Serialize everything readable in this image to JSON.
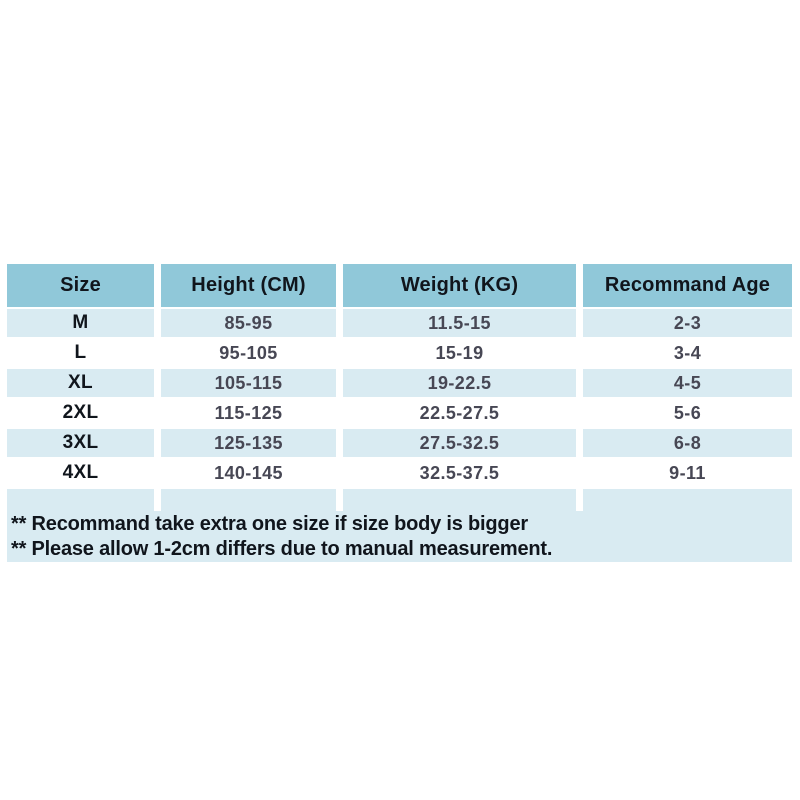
{
  "size_chart": {
    "headers": [
      "Size",
      "Height (CM)",
      "Weight (KG)",
      "Recommand Age"
    ],
    "rows": [
      [
        "M",
        "85-95",
        "11.5-15",
        "2-3"
      ],
      [
        "L",
        "95-105",
        "15-19",
        "3-4"
      ],
      [
        "XL",
        "105-115",
        "19-22.5",
        "4-5"
      ],
      [
        "2XL",
        "115-125",
        "22.5-27.5",
        "5-6"
      ],
      [
        "3XL",
        "125-135",
        "27.5-32.5",
        "6-8"
      ],
      [
        "4XL",
        "140-145",
        "32.5-37.5",
        "9-11"
      ]
    ],
    "notes": [
      "** Recommand take extra one size if size body is bigger",
      "** Please allow 1-2cm differs due to manual measurement."
    ],
    "colors": {
      "header_bg": "#90c8d9",
      "row_alt_bg": "#d9ebf2",
      "row_bg": "#ffffff",
      "heading_text": "#10151c",
      "value_text": "#474754",
      "page_bg": "#ffffff"
    }
  },
  "chart_data": {
    "type": "table",
    "title": "Size chart with recommended age",
    "columns": [
      "Size",
      "Height (CM)",
      "Weight (KG)",
      "Recommand Age"
    ],
    "rows": [
      {
        "size": "M",
        "height_cm": "85-95",
        "weight_kg": "11.5-15",
        "recommand_age": "2-3"
      },
      {
        "size": "L",
        "height_cm": "95-105",
        "weight_kg": "15-19",
        "recommand_age": "3-4"
      },
      {
        "size": "XL",
        "height_cm": "105-115",
        "weight_kg": "19-22.5",
        "recommand_age": "4-5"
      },
      {
        "size": "2XL",
        "height_cm": "115-125",
        "weight_kg": "22.5-27.5",
        "recommand_age": "5-6"
      },
      {
        "size": "3XL",
        "height_cm": "125-135",
        "weight_kg": "27.5-32.5",
        "recommand_age": "6-8"
      },
      {
        "size": "4XL",
        "height_cm": "140-145",
        "weight_kg": "32.5-37.5",
        "recommand_age": "9-11"
      }
    ],
    "annotations": [
      "** Recommand take extra one size if size body is bigger",
      "** Please allow 1-2cm differs due to manual measurement."
    ]
  }
}
